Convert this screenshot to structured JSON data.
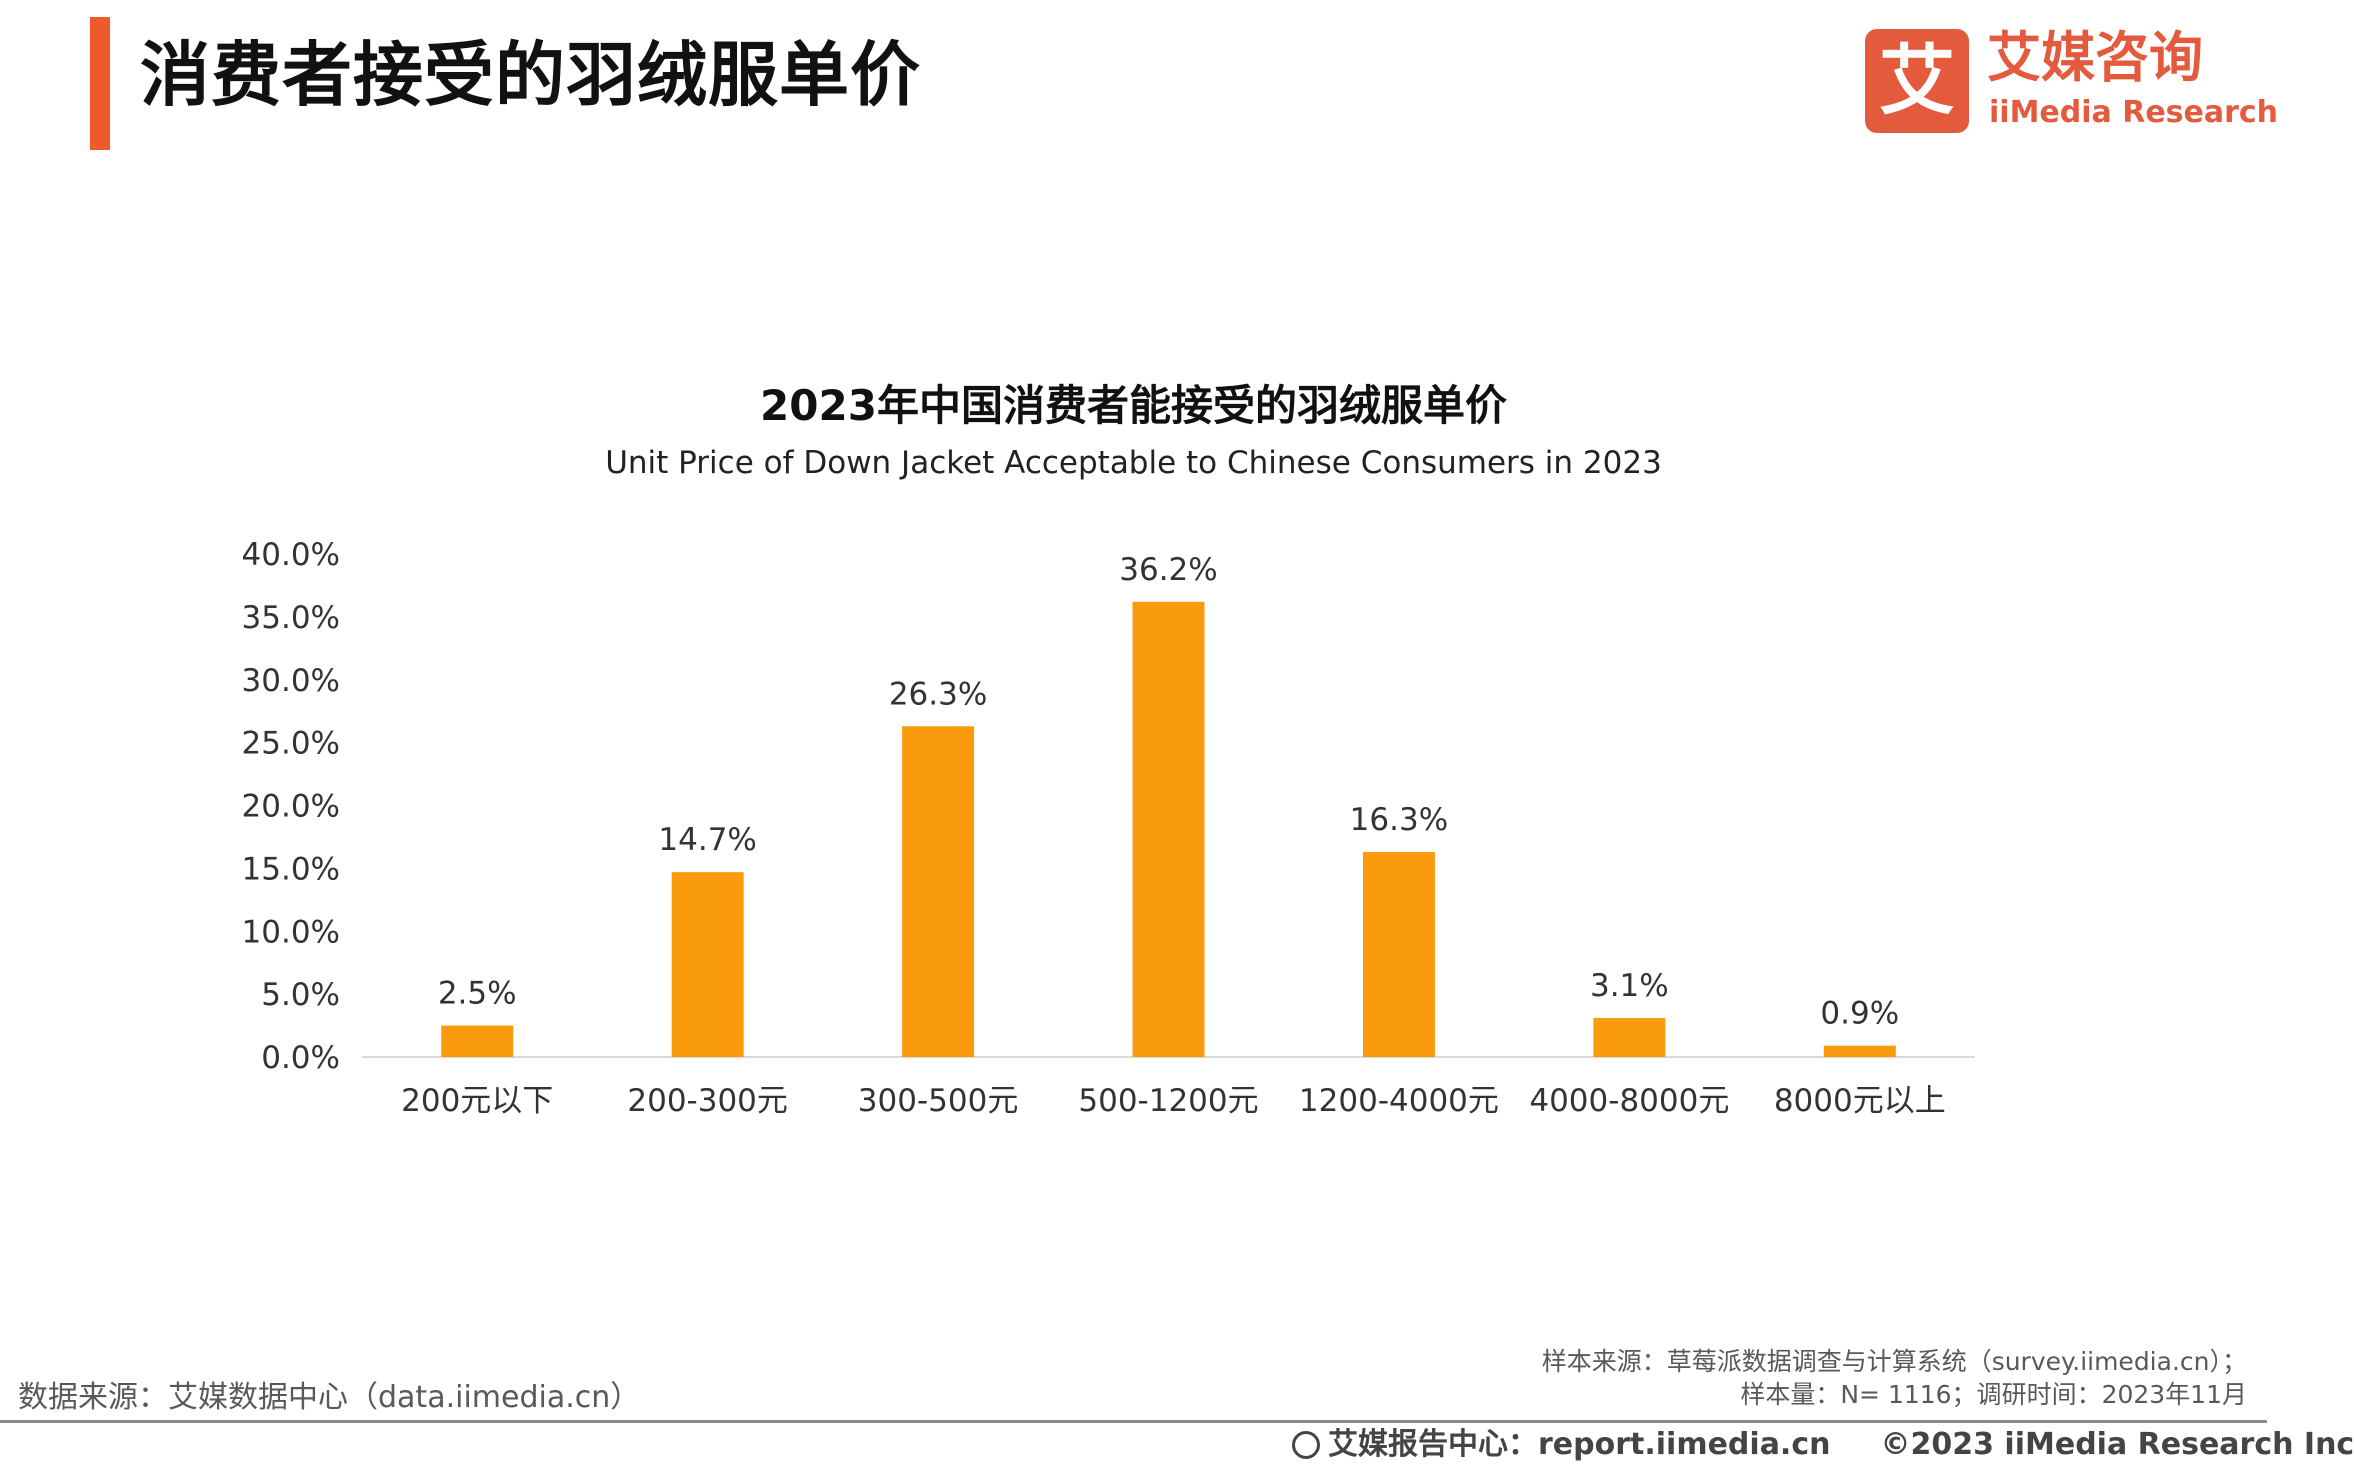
{
  "page": {
    "title": "消费者接受的羽绒服单价"
  },
  "logo": {
    "mark": "艾",
    "cn": "艾媒咨询",
    "en": "iiMedia Research"
  },
  "colors": {
    "accent": "#ef5a2a",
    "bar": "#f99b0c",
    "logo": "#e35a3d"
  },
  "chart_data": {
    "type": "bar",
    "title": "2023年中国消费者能接受的羽绒服单价",
    "subtitle": "Unit Price of Down Jacket Acceptable to Chinese Consumers in 2023",
    "categories": [
      "200元以下",
      "200-300元",
      "300-500元",
      "500-1200元",
      "1200-4000元",
      "4000-8000元",
      "8000元以上"
    ],
    "values": [
      2.5,
      14.7,
      26.3,
      36.2,
      16.3,
      3.1,
      0.9
    ],
    "data_labels": [
      "2.5%",
      "14.7%",
      "26.3%",
      "36.2%",
      "16.3%",
      "3.1%",
      "0.9%"
    ],
    "yticks": [
      "0.0%",
      "5.0%",
      "10.0%",
      "15.0%",
      "20.0%",
      "25.0%",
      "30.0%",
      "35.0%",
      "40.0%"
    ],
    "ylim": [
      0,
      40
    ],
    "xlabel": "",
    "ylabel": "",
    "grid": false,
    "legend": false
  },
  "footer": {
    "source": "数据来源：艾媒数据中心（data.iimedia.cn）",
    "sample_source": "样本来源：草莓派数据调查与计算系统（survey.iimedia.cn）；",
    "sample_info": "样本量：N= 1116；调研时间：2023年11月",
    "report_center": "艾媒报告中心：report.iimedia.cn",
    "copyright": "©2023  iiMedia Research  Inc"
  }
}
